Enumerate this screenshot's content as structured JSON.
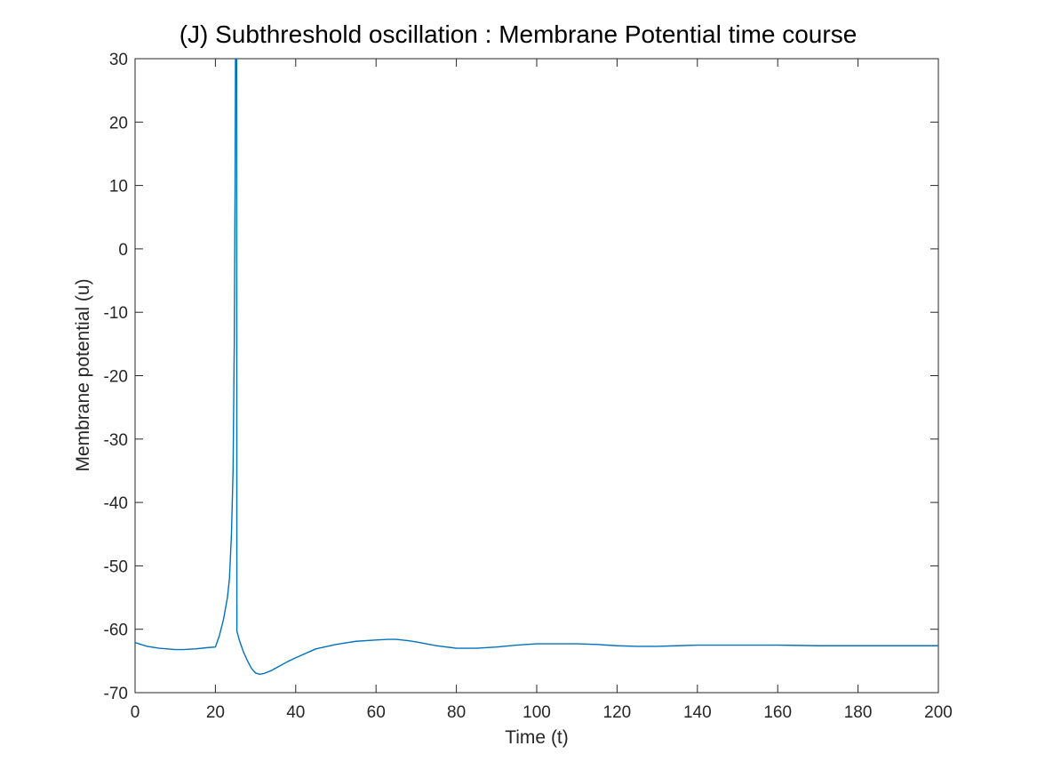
{
  "chart_data": {
    "type": "line",
    "title": "(J) Subthreshold oscillation : Membrane Potential time course",
    "xlabel": "Time (t)",
    "ylabel": "Membrane potential (u)",
    "xlim": [
      0,
      200
    ],
    "ylim": [
      -70,
      30
    ],
    "xticks": [
      0,
      20,
      40,
      60,
      80,
      100,
      120,
      140,
      160,
      180,
      200
    ],
    "xtick_labels": [
      "0",
      "20",
      "40",
      "60",
      "80",
      "100",
      "120",
      "140",
      "160",
      "180",
      "200"
    ],
    "yticks": [
      -70,
      -60,
      -50,
      -40,
      -30,
      -20,
      -10,
      0,
      10,
      20,
      30
    ],
    "ytick_labels": [
      "-70",
      "-60",
      "-50",
      "-40",
      "-30",
      "-20",
      "-10",
      "0",
      "10",
      "20",
      "30"
    ],
    "grid": false,
    "line_color": "#0072BD",
    "series": [
      {
        "x": [
          0,
          3,
          6,
          10,
          12,
          15,
          18,
          20,
          21,
          22,
          23,
          23.5,
          24,
          24.4,
          24.7,
          24.9,
          25,
          25.3,
          25.35,
          26,
          27,
          28,
          29,
          30,
          31,
          32,
          34,
          36,
          38,
          40,
          45,
          50,
          55,
          60,
          63,
          65,
          68,
          70,
          75,
          80,
          85,
          90,
          95,
          100,
          105,
          110,
          115,
          120,
          125,
          130,
          135,
          140,
          150,
          160,
          170,
          180,
          190,
          200
        ],
        "y": [
          -62.1,
          -62.7,
          -63.0,
          -63.2,
          -63.2,
          -63.1,
          -62.9,
          -62.8,
          -61.0,
          -58.5,
          -55.0,
          -52.0,
          -45.0,
          -35.0,
          -15.0,
          10.0,
          30.0,
          30.0,
          -60.3,
          -61.8,
          -63.6,
          -65.0,
          -66.2,
          -66.9,
          -67.1,
          -67.0,
          -66.5,
          -65.8,
          -65.1,
          -64.5,
          -63.1,
          -62.4,
          -61.9,
          -61.7,
          -61.6,
          -61.6,
          -61.8,
          -62.0,
          -62.6,
          -63.0,
          -63.0,
          -62.8,
          -62.5,
          -62.3,
          -62.3,
          -62.3,
          -62.4,
          -62.6,
          -62.7,
          -62.7,
          -62.6,
          -62.5,
          -62.5,
          -62.5,
          -62.6,
          -62.6,
          -62.6,
          -62.6
        ]
      }
    ]
  }
}
